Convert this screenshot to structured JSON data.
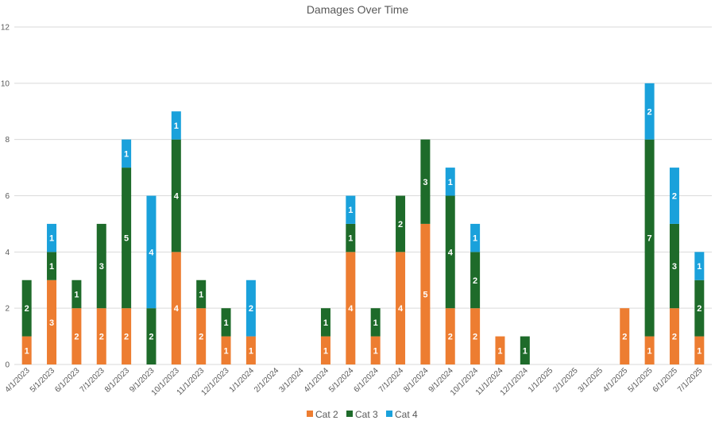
{
  "chart_data": {
    "type": "bar",
    "stacked": true,
    "title": "Damages Over Time",
    "xlabel": "",
    "ylabel": "",
    "ylim": [
      0,
      12
    ],
    "yticks": [
      0,
      2,
      4,
      6,
      8,
      10,
      12
    ],
    "grid": true,
    "legend_position": "bottom",
    "categories": [
      "4/1/2023",
      "5/1/2023",
      "6/1/2023",
      "7/1/2023",
      "8/1/2023",
      "9/1/2023",
      "10/1/2023",
      "11/1/2023",
      "12/1/2023",
      "1/1/2024",
      "2/1/2024",
      "3/1/2024",
      "4/1/2024",
      "5/1/2024",
      "6/1/2024",
      "7/1/2024",
      "8/1/2024",
      "9/1/2024",
      "10/1/2024",
      "11/1/2024",
      "12/1/2024",
      "1/1/2025",
      "2/1/2025",
      "3/1/2025",
      "4/1/2025",
      "5/1/2025",
      "6/1/2025",
      "7/1/2025"
    ],
    "series": [
      {
        "name": "Cat 2",
        "color": "#ED7D31",
        "values": [
          1,
          3,
          2,
          2,
          2,
          0,
          4,
          2,
          1,
          1,
          0,
          0,
          1,
          4,
          1,
          4,
          5,
          2,
          2,
          1,
          0,
          0,
          0,
          0,
          2,
          1,
          2,
          1
        ]
      },
      {
        "name": "Cat 3",
        "color": "#1E6B2A",
        "values": [
          2,
          1,
          1,
          3,
          5,
          2,
          4,
          1,
          1,
          0,
          0,
          0,
          1,
          1,
          1,
          2,
          3,
          4,
          2,
          0,
          1,
          0,
          0,
          0,
          0,
          7,
          3,
          2
        ]
      },
      {
        "name": "Cat 4",
        "color": "#1AA1DB",
        "values": [
          0,
          1,
          0,
          0,
          1,
          4,
          1,
          0,
          0,
          2,
          0,
          0,
          0,
          1,
          0,
          0,
          0,
          1,
          1,
          0,
          0,
          0,
          0,
          0,
          0,
          2,
          2,
          1
        ]
      }
    ]
  }
}
